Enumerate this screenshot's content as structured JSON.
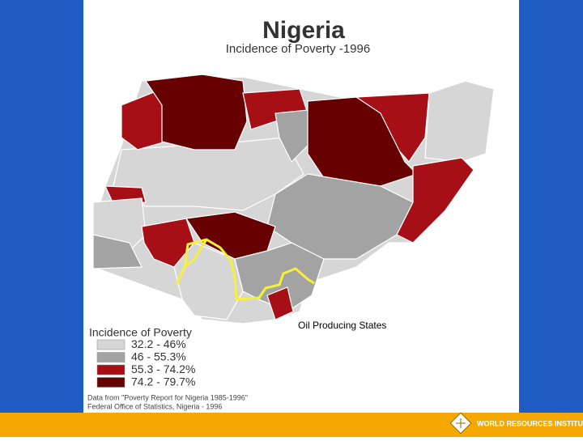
{
  "header": {
    "title": "Nigeria",
    "subtitle": "Incidence of Poverty -1996"
  },
  "map": {
    "annotation": "Oil Producing States"
  },
  "legend": {
    "title": "Incidence of Poverty",
    "items": [
      {
        "label": "32.2 - 46%",
        "color": "#d6d6d6"
      },
      {
        "label": "46 - 55.3%",
        "color": "#a3a3a3"
      },
      {
        "label": "55.3 - 74.2%",
        "color": "#a50f15"
      },
      {
        "label": "74.2 - 79.7%",
        "color": "#670000"
      }
    ]
  },
  "source": [
    "Data from \"Poverty Report for Nigeria 1985-1996\"",
    "Federal Office of Statistics, Nigeria - 1996"
  ],
  "footer": {
    "logo": "WORLD RESOURCES INSTITUTE"
  }
}
